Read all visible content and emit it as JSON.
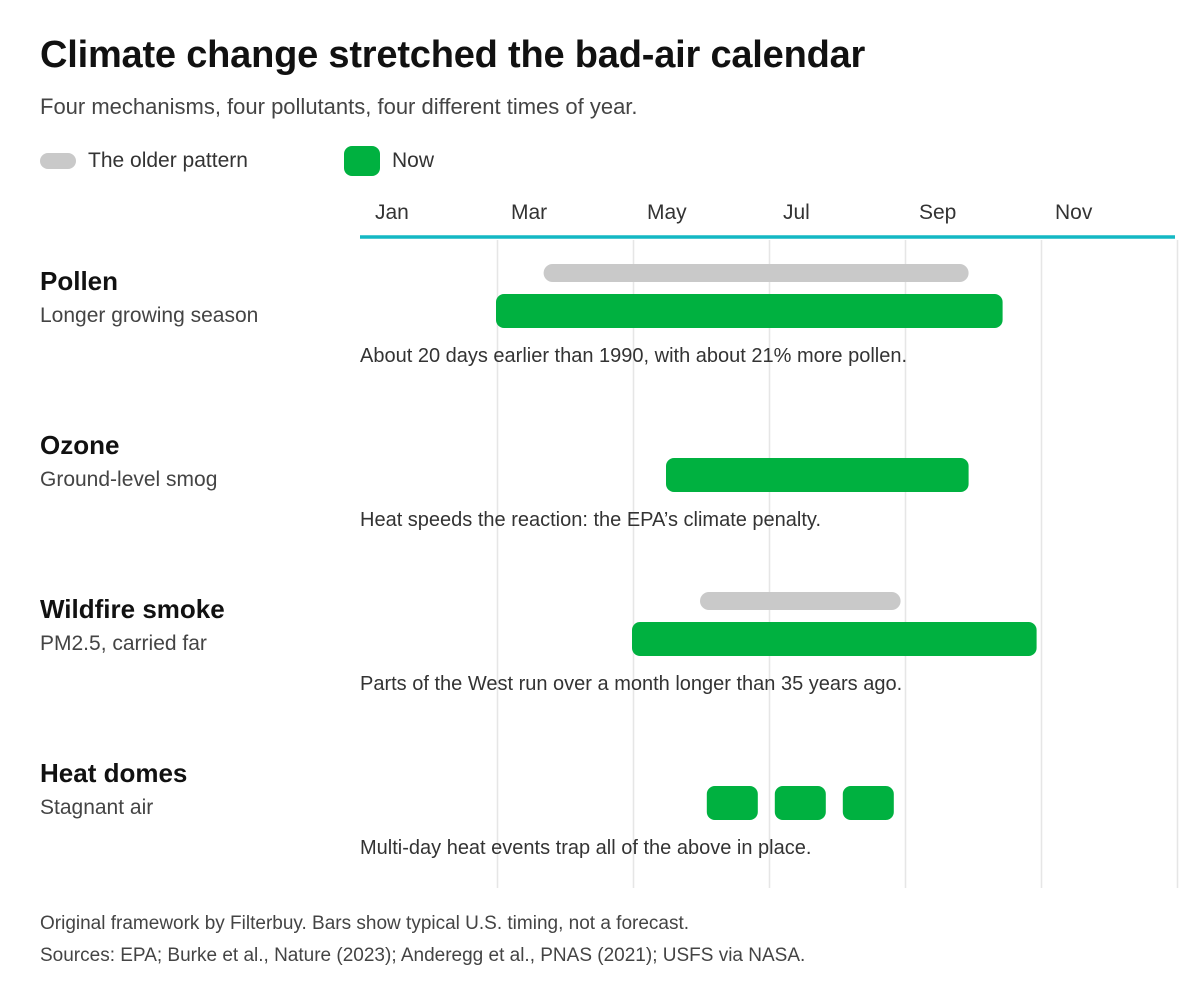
{
  "title": "Climate change stretched the bad-air calendar",
  "subtitle": "Four mechanisms, four pollutants, four different times of year.",
  "legend": {
    "older_label": "The older pattern",
    "now_label": "Now"
  },
  "colors": {
    "now": "#00b140",
    "older": "#c9c9c9",
    "axis_line": "#14b8c4",
    "gridline": "#e6e6e6"
  },
  "footer": {
    "line1": "Original framework by Filterbuy. Bars show typical U.S. timing, not a forecast.",
    "line2": "Sources: EPA; Burke et al., Nature (2023); Anderegg et al., PNAS (2021); USFS via NASA."
  },
  "chart_data": {
    "type": "timeline",
    "x_unit": "month (1 = Jan, 13 = end of Dec)",
    "xlim": [
      1,
      13
    ],
    "tick_labels": [
      "Jan",
      "Mar",
      "May",
      "Jul",
      "Sep",
      "Nov"
    ],
    "tick_positions": [
      1,
      3,
      5,
      7,
      9,
      11
    ],
    "grid": true,
    "rows": [
      {
        "name": "Pollen",
        "subtitle": "Longer growing season",
        "note": "About 20 days earlier than 1990, with about 21% more pollen.",
        "older": [
          [
            3.7,
            9.95
          ]
        ],
        "now": [
          [
            3.0,
            10.45
          ]
        ]
      },
      {
        "name": "Ozone",
        "subtitle": "Ground-level smog",
        "note": "Heat speeds the reaction: the EPA’s climate penalty.",
        "older": [],
        "now": [
          [
            5.5,
            9.95
          ]
        ]
      },
      {
        "name": "Wildfire smoke",
        "subtitle": "PM2.5, carried far",
        "note": "Parts of the West run over a month longer than 35 years ago.",
        "older": [
          [
            6.0,
            8.95
          ]
        ],
        "now": [
          [
            5.0,
            10.95
          ]
        ]
      },
      {
        "name": "Heat domes",
        "subtitle": "Stagnant air",
        "note": "Multi-day heat events trap all of the above in place.",
        "older": [],
        "now": [
          [
            6.1,
            6.85
          ],
          [
            7.1,
            7.85
          ],
          [
            8.1,
            8.85
          ]
        ]
      }
    ]
  }
}
